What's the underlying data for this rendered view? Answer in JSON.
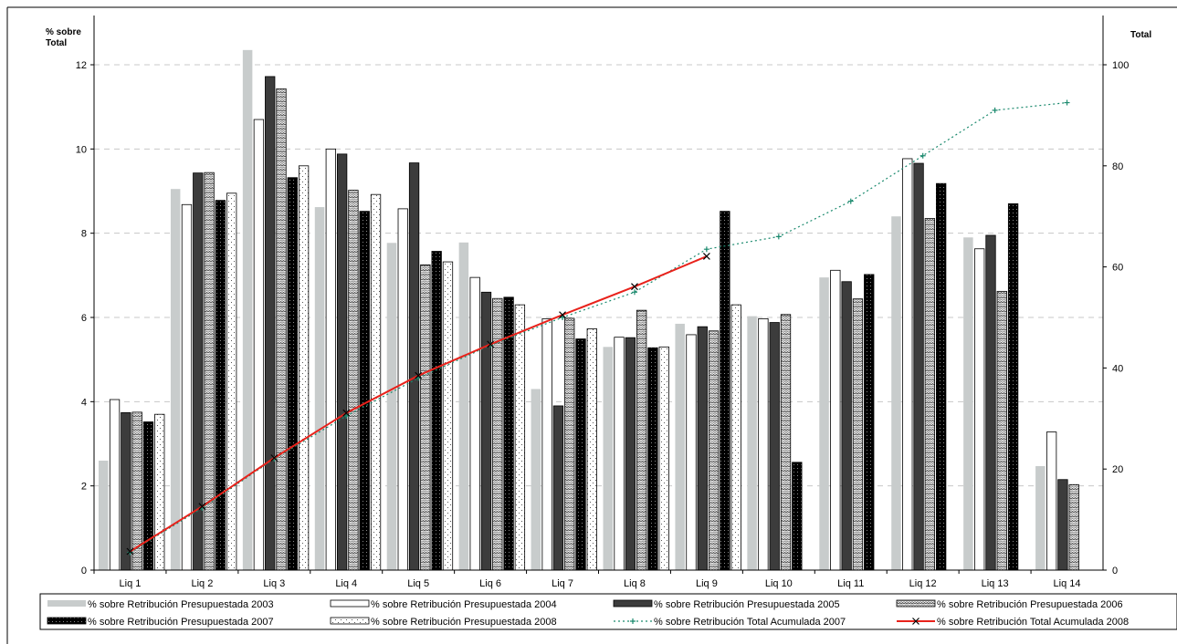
{
  "chart_data": {
    "type": "bar",
    "y_left_label": "% sobre Total",
    "y_left_label_lines": [
      "% sobre",
      "Total"
    ],
    "y_right_label": "Total",
    "ylim_left": [
      0,
      12.5
    ],
    "ylim_right": [
      0,
      104.17
    ],
    "yticks_left": [
      0,
      2,
      4,
      6,
      8,
      10,
      12
    ],
    "yticks_right": [
      0,
      20,
      40,
      60,
      80,
      100
    ],
    "grid": "dashed horizontal",
    "legend_position": "bottom",
    "categories": [
      "Liq 1",
      "Liq 2",
      "Liq 3",
      "Liq 4",
      "Liq 5",
      "Liq 6",
      "Liq 7",
      "Liq 8",
      "Liq 9",
      "Liq 10",
      "Liq 11",
      "Liq 12",
      "Liq 13",
      "Liq 14"
    ],
    "bar_series": [
      {
        "name": "% sobre Retribución Presupuestada 2003",
        "pattern": "solid-lightgray",
        "values": [
          2.6,
          9.05,
          12.35,
          8.62,
          7.77,
          7.78,
          4.3,
          5.3,
          5.85,
          6.03,
          6.95,
          8.4,
          7.9,
          2.47
        ]
      },
      {
        "name": "% sobre Retribución Presupuestada 2004",
        "pattern": "white",
        "values": [
          4.05,
          8.68,
          10.7,
          10.0,
          8.58,
          6.95,
          5.97,
          5.53,
          5.59,
          5.97,
          7.12,
          9.77,
          7.63,
          3.28
        ]
      },
      {
        "name": "% sobre Retribución Presupuestada 2005",
        "pattern": "solid-dark",
        "values": [
          3.74,
          9.43,
          11.72,
          9.88,
          9.67,
          6.6,
          3.9,
          5.52,
          5.78,
          5.88,
          6.85,
          9.66,
          7.95,
          2.15
        ]
      },
      {
        "name": "% sobre Retribución Presupuestada 2006",
        "pattern": "zigzag",
        "values": [
          3.75,
          9.44,
          11.43,
          9.02,
          7.25,
          6.45,
          5.98,
          6.17,
          5.68,
          6.07,
          6.44,
          8.35,
          6.62,
          2.03
        ]
      },
      {
        "name": "% sobre Retribución Presupuestada 2007",
        "pattern": "black-dotted",
        "values": [
          3.52,
          8.78,
          9.32,
          8.52,
          7.57,
          6.48,
          5.49,
          5.28,
          8.52,
          2.56,
          7.02,
          9.18,
          8.7,
          null
        ]
      },
      {
        "name": "% sobre Retribución Presupuestada 2008",
        "pattern": "white-dotted",
        "values": [
          3.7,
          8.95,
          9.6,
          8.92,
          7.32,
          6.3,
          5.73,
          5.3,
          6.3,
          null,
          null,
          null,
          null,
          null
        ]
      }
    ],
    "line_series": [
      {
        "name": "% sobre Retribución Total Acumulada 2007",
        "axis": "right",
        "color": "#1b8a6e",
        "style": "dotted",
        "marker": "+",
        "values": [
          3.5,
          12.3,
          22.0,
          30.5,
          38.0,
          44.5,
          50.0,
          55.0,
          63.5,
          66.0,
          73.0,
          82.0,
          91.0,
          92.5
        ]
      },
      {
        "name": "% sobre Retribución Total Acumulada 2008",
        "axis": "right",
        "color": "#e8221b",
        "style": "solid",
        "marker": "x",
        "values": [
          3.7,
          12.6,
          22.2,
          31.1,
          38.5,
          44.7,
          50.5,
          56.1,
          62.1,
          null,
          null,
          null,
          null,
          null
        ]
      }
    ],
    "colors": {
      "bar_light": "#c8cccc",
      "bar_dark": "#3c3c3c",
      "line_2007": "#1b8a6e",
      "line_2008": "#e8221b",
      "grid": "#c8c8c8"
    }
  }
}
